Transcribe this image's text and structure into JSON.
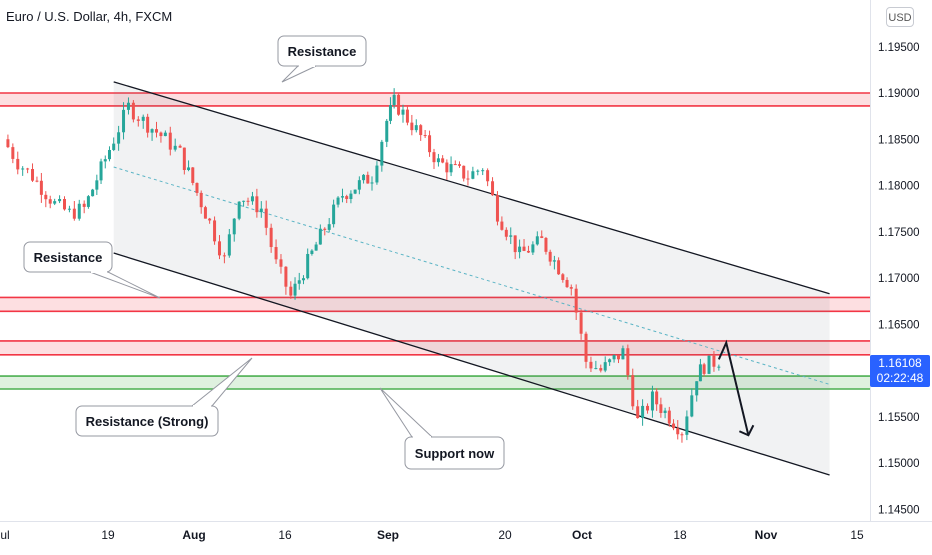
{
  "header": {
    "symbol_title": "Euro / U.S. Dollar, 4h, FXCM",
    "currency_button": "USD"
  },
  "price_label": {
    "price": "1.16108",
    "countdown": "02:22:48"
  },
  "chart_data": {
    "type": "candlestick",
    "title": "Euro / U.S. Dollar, 4h, FXCM",
    "y_axis": {
      "ticks": [
        1.145,
        1.15,
        1.155,
        1.16,
        1.165,
        1.17,
        1.175,
        1.18,
        1.185,
        1.19,
        1.195
      ],
      "tick_labels": [
        "1.14500",
        "1.15000",
        "1.15500",
        "1.16000",
        "1.16500",
        "1.17000",
        "1.17500",
        "1.18000",
        "1.18500",
        "1.19000",
        "1.19500"
      ],
      "range": [
        1.1445,
        1.1995
      ],
      "position": "right"
    },
    "x_axis": {
      "tick_labels": [
        "Jul",
        "19",
        "Aug",
        "16",
        "Sep",
        "20",
        "Oct",
        "18",
        "Nov",
        "15"
      ],
      "tick_bold": [
        false,
        false,
        true,
        false,
        true,
        false,
        true,
        false,
        true,
        false
      ]
    },
    "colors": {
      "up": "#26a69a",
      "down": "#ef5350",
      "resistance_line": "#f23645",
      "support_line": "#4caf50",
      "channel_line": "#131722",
      "midline": "#5ab4c5"
    },
    "horizontal_zones": [
      {
        "name": "top-resistance",
        "upper": 1.19,
        "lower": 1.1886,
        "color": "red"
      },
      {
        "name": "mid-resistance",
        "upper": 1.1679,
        "lower": 1.1664,
        "color": "red"
      },
      {
        "name": "strong-resistance",
        "upper": 1.1632,
        "lower": 1.1617,
        "color": "red"
      },
      {
        "name": "support",
        "upper": 1.1594,
        "lower": 1.158,
        "color": "green"
      }
    ],
    "channel": {
      "upper": [
        [
          "Jul 27",
          1.1912
        ],
        [
          "Nov 1",
          1.1683
        ]
      ],
      "lower": [
        [
          "Jul 27",
          1.1727
        ],
        [
          "Nov 1",
          1.1487
        ]
      ],
      "mid": [
        [
          "Jul 27",
          1.182
        ],
        [
          "Nov 1",
          1.1585
        ]
      ]
    },
    "projection_arrow": [
      [
        "Oct 17",
        1.1612
      ],
      [
        "Oct 18",
        1.163
      ],
      [
        "Oct 21",
        1.153
      ]
    ],
    "price_path": [
      {
        "date": "Jul 12",
        "close": 1.185
      },
      {
        "date": "Jul 14",
        "close": 1.1825
      },
      {
        "date": "Jul 16",
        "close": 1.181
      },
      {
        "date": "Jul 19",
        "close": 1.178
      },
      {
        "date": "Jul 21",
        "close": 1.177
      },
      {
        "date": "Jul 23",
        "close": 1.1775
      },
      {
        "date": "Jul 27",
        "close": 1.185
      },
      {
        "date": "Jul 29",
        "close": 1.1885
      },
      {
        "date": "Jul 31",
        "close": 1.187
      },
      {
        "date": "Aug 3",
        "close": 1.185
      },
      {
        "date": "Aug 5",
        "close": 1.1835
      },
      {
        "date": "Aug 9",
        "close": 1.176
      },
      {
        "date": "Aug 11",
        "close": 1.172
      },
      {
        "date": "Aug 13",
        "close": 1.179
      },
      {
        "date": "Aug 16",
        "close": 1.1775
      },
      {
        "date": "Aug 18",
        "close": 1.1715
      },
      {
        "date": "Aug 20",
        "close": 1.168
      },
      {
        "date": "Aug 24",
        "close": 1.1745
      },
      {
        "date": "Aug 27",
        "close": 1.179
      },
      {
        "date": "Aug 31",
        "close": 1.181
      },
      {
        "date": "Sep 2",
        "close": 1.187
      },
      {
        "date": "Sep 3",
        "close": 1.189
      },
      {
        "date": "Sep 6",
        "close": 1.186
      },
      {
        "date": "Sep 9",
        "close": 1.1825
      },
      {
        "date": "Sep 13",
        "close": 1.181
      },
      {
        "date": "Sep 15",
        "close": 1.182
      },
      {
        "date": "Sep 17",
        "close": 1.177
      },
      {
        "date": "Sep 20",
        "close": 1.1725
      },
      {
        "date": "Sep 23",
        "close": 1.174
      },
      {
        "date": "Sep 27",
        "close": 1.169
      },
      {
        "date": "Sep 29",
        "close": 1.161
      },
      {
        "date": "Oct 1",
        "close": 1.16
      },
      {
        "date": "Oct 4",
        "close": 1.162
      },
      {
        "date": "Oct 6",
        "close": 1.1545
      },
      {
        "date": "Oct 8",
        "close": 1.157
      },
      {
        "date": "Oct 12",
        "close": 1.1535
      },
      {
        "date": "Oct 14",
        "close": 1.1595
      },
      {
        "date": "Oct 15",
        "close": 1.1605
      },
      {
        "date": "Oct 17",
        "close": 1.1611
      }
    ],
    "annotations": [
      {
        "name": "callout-resistance-top",
        "text": "Resistance"
      },
      {
        "name": "callout-resistance-left",
        "text": "Resistance"
      },
      {
        "name": "callout-resistance-strong",
        "text": "Resistance (Strong)"
      },
      {
        "name": "callout-support-now",
        "text": "Support now"
      }
    ],
    "grid": false
  }
}
